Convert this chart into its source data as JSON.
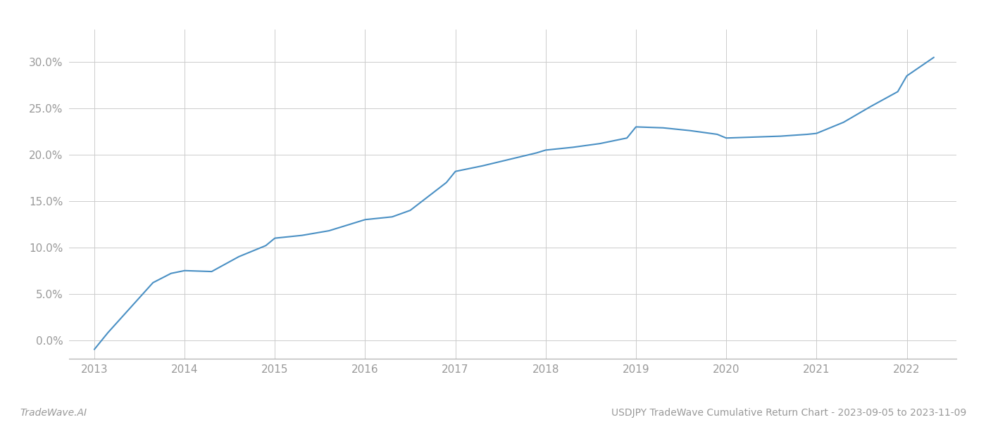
{
  "title": "USDJPY TradeWave Cumulative Return Chart - 2023-09-05 to 2023-11-09",
  "watermark": "TradeWave.AI",
  "line_color": "#4a90c4",
  "background_color": "#ffffff",
  "grid_color": "#cccccc",
  "x_values": [
    2013.0,
    2013.15,
    2013.4,
    2013.65,
    2013.85,
    2014.0,
    2014.3,
    2014.6,
    2014.9,
    2015.0,
    2015.3,
    2015.6,
    2015.9,
    2016.0,
    2016.3,
    2016.5,
    2016.7,
    2016.9,
    2017.0,
    2017.3,
    2017.6,
    2017.9,
    2018.0,
    2018.3,
    2018.6,
    2018.9,
    2019.0,
    2019.3,
    2019.6,
    2019.9,
    2020.0,
    2020.3,
    2020.6,
    2020.9,
    2021.0,
    2021.3,
    2021.6,
    2021.9,
    2022.0,
    2022.15,
    2022.3
  ],
  "y_values": [
    -1.0,
    0.8,
    3.5,
    6.2,
    7.2,
    7.5,
    7.4,
    9.0,
    10.2,
    11.0,
    11.3,
    11.8,
    12.7,
    13.0,
    13.3,
    14.0,
    15.5,
    17.0,
    18.2,
    18.8,
    19.5,
    20.2,
    20.5,
    20.8,
    21.2,
    21.8,
    23.0,
    22.9,
    22.6,
    22.2,
    21.8,
    21.9,
    22.0,
    22.2,
    22.3,
    23.5,
    25.2,
    26.8,
    28.5,
    29.5,
    30.5
  ],
  "xlim": [
    2012.72,
    2022.55
  ],
  "ylim": [
    -2.0,
    33.5
  ],
  "yticks": [
    0.0,
    5.0,
    10.0,
    15.0,
    20.0,
    25.0,
    30.0
  ],
  "ytick_labels": [
    "0.0%",
    "5.0%",
    "10.0%",
    "15.0%",
    "20.0%",
    "25.0%",
    "30.0%"
  ],
  "xticks": [
    2013,
    2014,
    2015,
    2016,
    2017,
    2018,
    2019,
    2020,
    2021,
    2022
  ],
  "line_width": 1.5,
  "axis_label_color": "#999999",
  "tick_label_fontsize": 11,
  "footer_fontsize": 10
}
